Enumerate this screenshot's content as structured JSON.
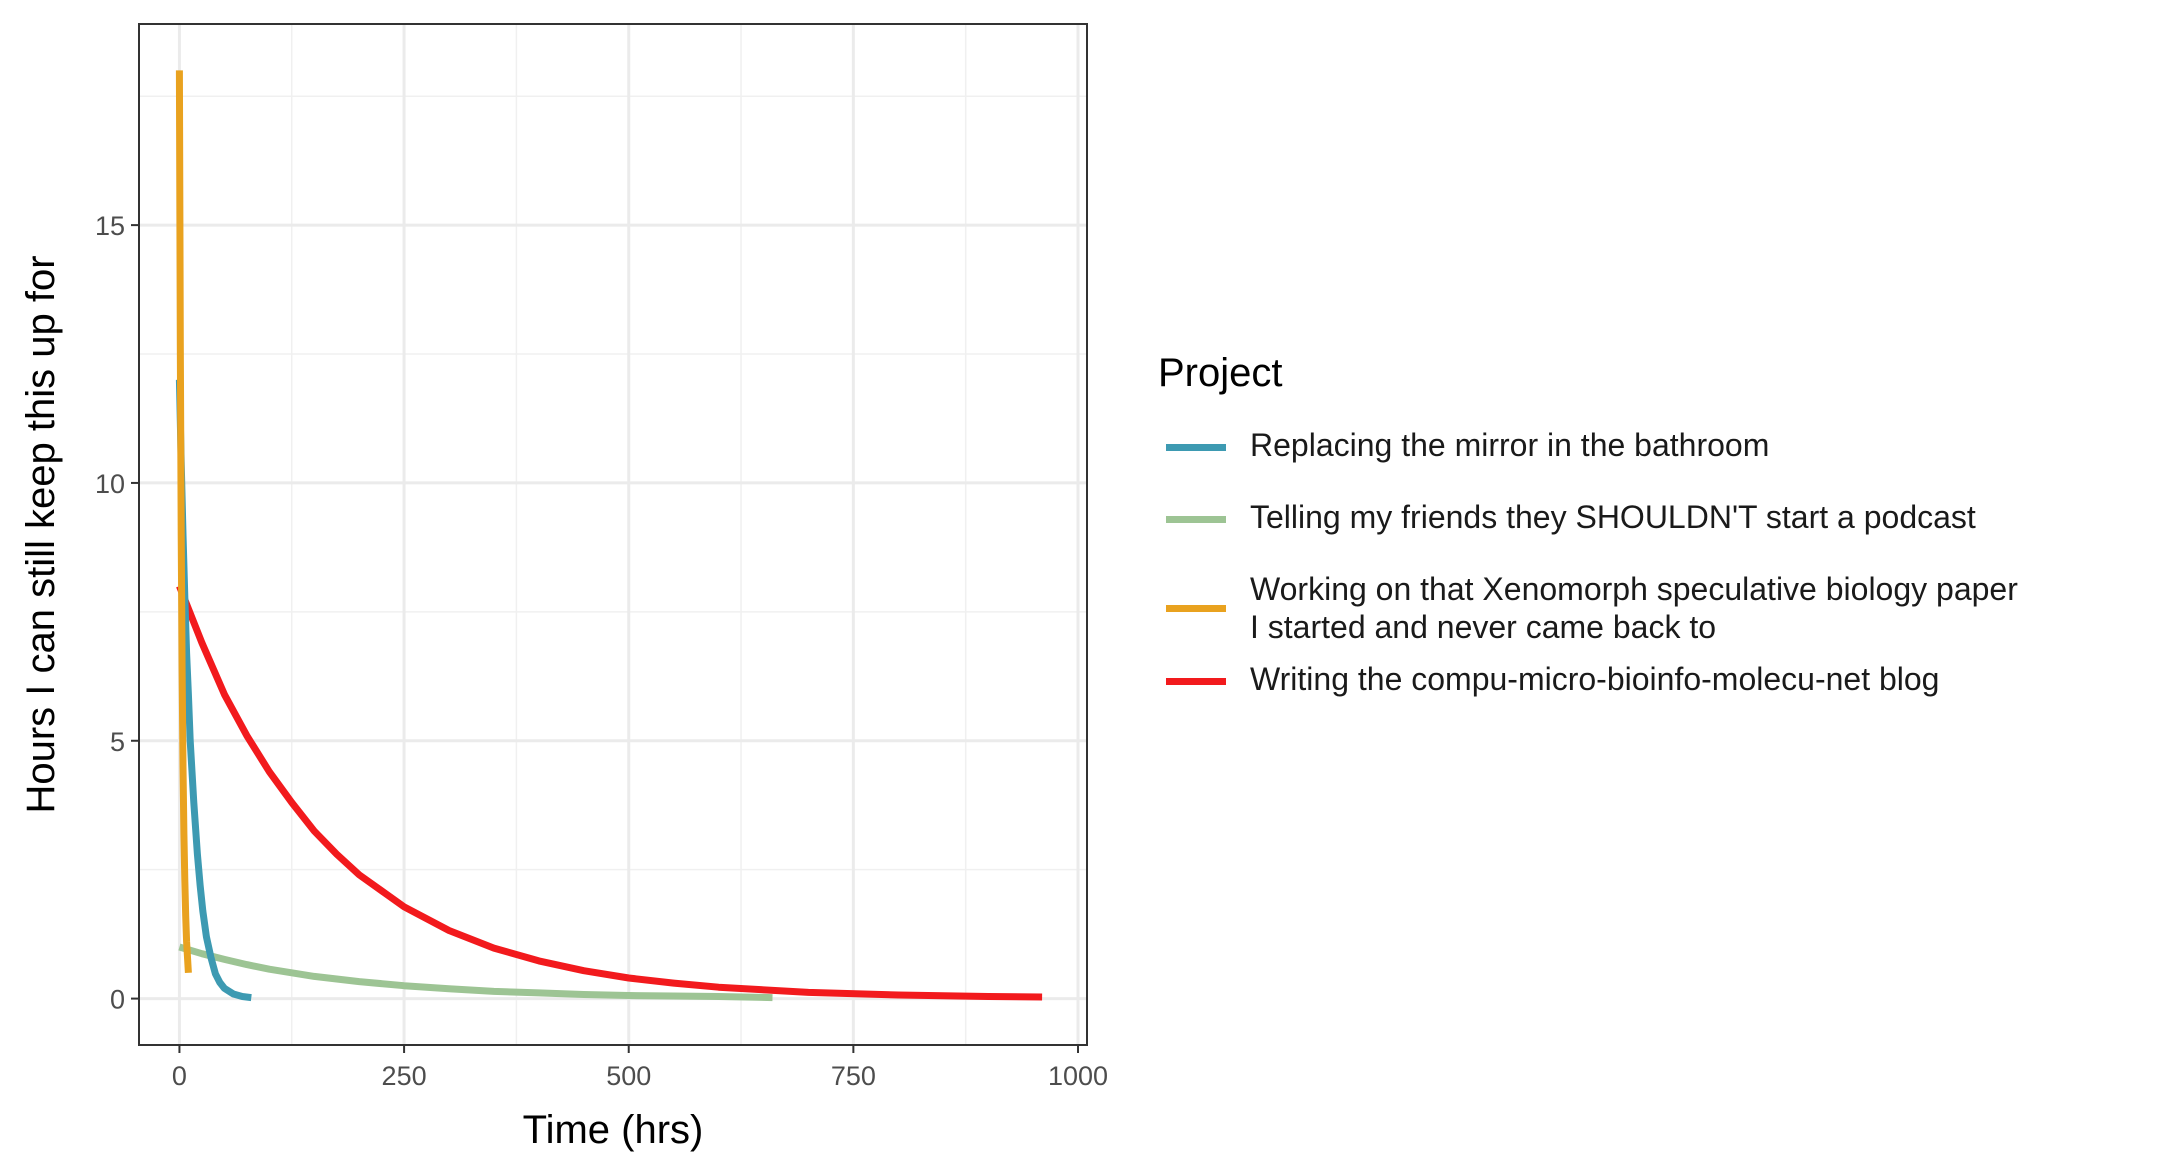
{
  "chart_data": {
    "type": "line",
    "title": "",
    "xlabel": "Time (hrs)",
    "ylabel": "Hours I can still keep this up for",
    "xlim": [
      -45,
      1010
    ],
    "ylim": [
      -0.9,
      18.9
    ],
    "x_ticks": [
      0,
      250,
      500,
      750,
      1000
    ],
    "x_tick_labels": [
      "0",
      "250",
      "500",
      "750",
      "1000"
    ],
    "y_ticks": [
      0,
      5,
      10,
      15
    ],
    "y_tick_labels": [
      "0",
      "5",
      "10",
      "15"
    ],
    "grid": true,
    "legend_title": "Project",
    "legend_position": "right",
    "series": [
      {
        "name": "Replacing the mirror in the bathroom",
        "color": "#3D9AB2",
        "x": [
          0,
          2,
          4,
          6,
          8,
          10,
          12,
          14,
          16,
          18,
          20,
          23,
          26,
          30,
          35,
          40,
          45,
          50,
          60,
          70,
          80
        ],
        "y": [
          12.0,
          10.4,
          9.0,
          7.8,
          6.7,
          5.9,
          5.0,
          4.4,
          3.8,
          3.3,
          2.8,
          2.2,
          1.7,
          1.2,
          0.8,
          0.48,
          0.31,
          0.2,
          0.09,
          0.04,
          0.02
        ]
      },
      {
        "name": "Telling my friends they SHOULDN'T start a podcast",
        "color": "#9DC494",
        "x": [
          0,
          25,
          50,
          75,
          100,
          150,
          200,
          250,
          300,
          350,
          400,
          450,
          500,
          550,
          600,
          660
        ],
        "y": [
          1.0,
          0.87,
          0.76,
          0.66,
          0.57,
          0.43,
          0.33,
          0.25,
          0.19,
          0.14,
          0.11,
          0.08,
          0.06,
          0.05,
          0.04,
          0.02
        ]
      },
      {
        "name": "Working on that Xenomorph speculative biology paper\nI started and never came back to",
        "color": "#E9A21F",
        "x": [
          0,
          0.5,
          1,
          1.5,
          2,
          2.5,
          3,
          4,
          5,
          6,
          7,
          8,
          10
        ],
        "y": [
          18.0,
          15.1,
          12.7,
          10.7,
          9.0,
          7.6,
          6.4,
          4.5,
          3.2,
          2.3,
          1.6,
          1.1,
          0.5
        ]
      },
      {
        "name": "Writing the compu-micro-bioinfo-molecu-net blog",
        "color": "#F21A1D",
        "x": [
          0,
          25,
          50,
          75,
          100,
          125,
          150,
          175,
          200,
          250,
          300,
          350,
          400,
          450,
          500,
          550,
          600,
          700,
          800,
          900,
          960
        ],
        "y": [
          8.0,
          6.9,
          5.9,
          5.1,
          4.4,
          3.8,
          3.25,
          2.8,
          2.4,
          1.78,
          1.32,
          0.98,
          0.73,
          0.54,
          0.4,
          0.3,
          0.22,
          0.12,
          0.07,
          0.04,
          0.03
        ]
      }
    ]
  }
}
